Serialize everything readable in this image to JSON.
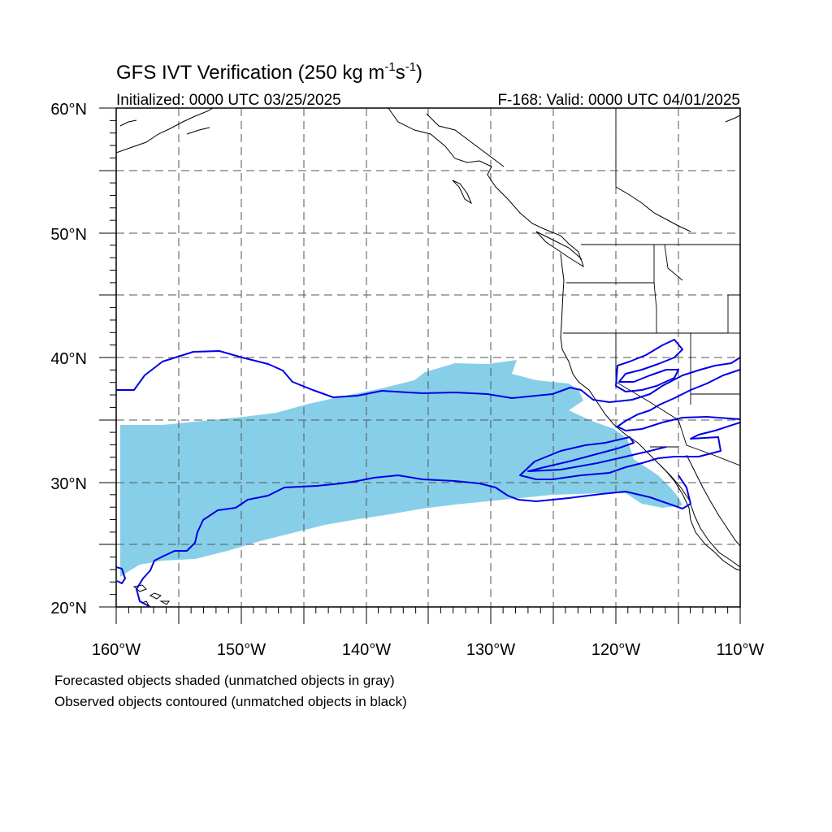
{
  "title": {
    "prefix": "GFS IVT Verification (250 kg m",
    "sup1": "-1",
    "mid": "s",
    "sup2": "-1",
    "suffix": ")"
  },
  "subtitle_left": "Initialized: 0000 UTC 03/25/2025",
  "subtitle_right": "F-168: Valid: 0000 UTC 04/01/2025",
  "axes": {
    "lon_labels": [
      "160°W",
      "150°W",
      "140°W",
      "130°W",
      "120°W",
      "110°W"
    ],
    "lat_labels": [
      "60°N",
      "50°N",
      "40°N",
      "30°N",
      "20°N"
    ],
    "lon_range": [
      -160,
      -110
    ],
    "lat_range": [
      20,
      60
    ]
  },
  "legend": {
    "line1": "Forecasted objects shaded (unmatched objects in gray)",
    "line2": "Observed objects contoured (unmatched objects in black)"
  },
  "colors": {
    "forecast_fill": "#87cfe9",
    "observed_contour": "#0000e6",
    "coastline": "#000000",
    "grid": "#555555"
  }
}
